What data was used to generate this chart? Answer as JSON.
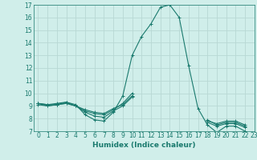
{
  "title": "",
  "xlabel": "Humidex (Indice chaleur)",
  "ylabel": "",
  "background_color": "#d0eeea",
  "grid_color": "#b8d8d4",
  "line_color": "#1a7a6e",
  "xlim": [
    -0.5,
    23
  ],
  "ylim": [
    7,
    17
  ],
  "xticks": [
    0,
    1,
    2,
    3,
    4,
    5,
    6,
    7,
    8,
    9,
    10,
    11,
    12,
    13,
    14,
    15,
    16,
    17,
    18,
    19,
    20,
    21,
    22,
    23
  ],
  "yticks": [
    7,
    8,
    9,
    10,
    11,
    12,
    13,
    14,
    15,
    16,
    17
  ],
  "series": [
    [
      9.2,
      9.1,
      9.2,
      9.3,
      9.1,
      8.3,
      7.9,
      7.8,
      8.5,
      9.8,
      13.0,
      14.5,
      15.5,
      16.8,
      17.0,
      16.0,
      12.2,
      8.8,
      7.5,
      6.9,
      7.4,
      7.4,
      7.0
    ],
    [
      9.1,
      9.0,
      9.1,
      9.2,
      9.0,
      8.6,
      8.4,
      8.3,
      8.7,
      9.2,
      10.0,
      null,
      null,
      null,
      null,
      null,
      null,
      null,
      7.8,
      7.6,
      7.8,
      7.8,
      7.5
    ],
    [
      9.2,
      9.0,
      9.1,
      9.2,
      9.0,
      8.5,
      8.2,
      8.1,
      8.6,
      9.0,
      9.7,
      null,
      null,
      null,
      null,
      null,
      null,
      null,
      7.7,
      7.4,
      7.6,
      7.6,
      7.3
    ],
    [
      9.2,
      9.1,
      9.1,
      9.3,
      9.0,
      8.7,
      8.5,
      8.4,
      8.8,
      9.1,
      9.8,
      null,
      null,
      null,
      null,
      null,
      null,
      null,
      7.9,
      7.5,
      7.7,
      7.7,
      7.4
    ]
  ],
  "marker": "+",
  "markersize": 3,
  "linewidth": 0.8,
  "tick_fontsize": 5.5,
  "xlabel_fontsize": 6.5
}
